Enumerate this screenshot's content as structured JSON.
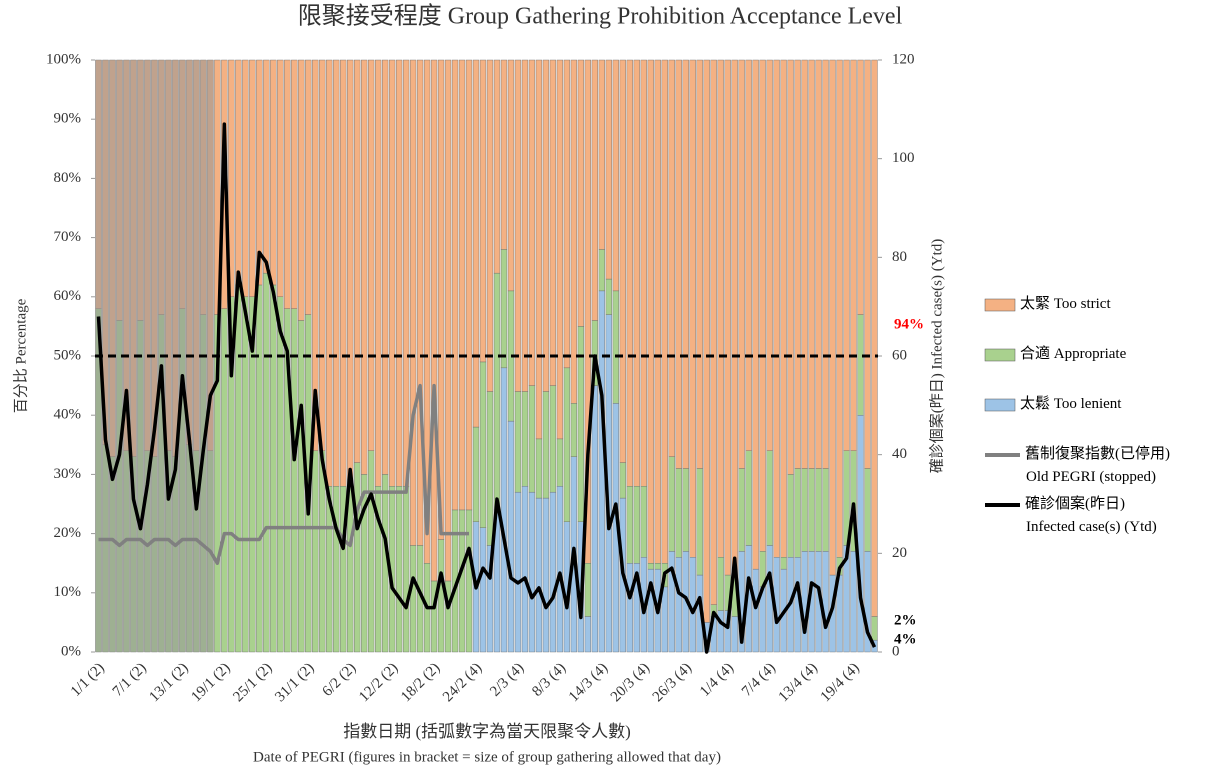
{
  "chart_data": {
    "type": "stacked-bar-line",
    "title": "限聚接受程度 Group Gathering Prohibition Acceptance Level",
    "y_label": "百分比 Percentage",
    "y2_label": "確診個案(昨日) Infected case(s) (Ytd)",
    "x_label": "指數日期 (括弧數字為當天限聚令人數)",
    "x_label_2": "Date of PEGRI (figures in bracket = size of group gathering allowed that day)",
    "categories": [
      "1/1 (2)",
      null,
      null,
      null,
      null,
      null,
      "7/1 (2)",
      null,
      null,
      null,
      null,
      null,
      "13/1 (2)",
      null,
      null,
      null,
      null,
      null,
      "19/1 (2)",
      null,
      null,
      null,
      null,
      null,
      "25/1 (2)",
      null,
      null,
      null,
      null,
      null,
      "31/1 (2)",
      null,
      null,
      null,
      null,
      null,
      "6/2 (2)",
      null,
      null,
      null,
      null,
      null,
      "12/2 (2)",
      null,
      null,
      null,
      null,
      null,
      "18/2 (2)",
      null,
      null,
      null,
      null,
      null,
      "24/2 (4)",
      null,
      null,
      null,
      null,
      null,
      "2/3 (4)",
      null,
      null,
      null,
      null,
      null,
      "8/3 (4)",
      null,
      null,
      null,
      null,
      null,
      "14/3 (4)",
      null,
      null,
      null,
      null,
      null,
      "20/3 (4)",
      null,
      null,
      null,
      null,
      null,
      "26/3 (4)",
      null,
      null,
      null,
      null,
      null,
      "1/4 (4)",
      null,
      null,
      null,
      null,
      null,
      "7/4 (4)",
      null,
      null,
      null,
      null,
      null,
      "13/4 (4)",
      null,
      null,
      null,
      null,
      null,
      "19/4 (4)",
      null,
      null,
      null
    ],
    "ylim": [
      0,
      100
    ],
    "yticks": [
      {
        "value": 0,
        "label": "0%"
      },
      {
        "value": 10,
        "label": "10%"
      },
      {
        "value": 20,
        "label": "20%"
      },
      {
        "value": 30,
        "label": "30%"
      },
      {
        "value": 40,
        "label": "40%"
      },
      {
        "value": 50,
        "label": "50%"
      },
      {
        "value": 60,
        "label": "60%"
      },
      {
        "value": 70,
        "label": "70%"
      },
      {
        "value": 80,
        "label": "80%"
      },
      {
        "value": 90,
        "label": "90%"
      },
      {
        "value": 100,
        "label": "100%"
      }
    ],
    "y2lim": [
      0,
      120
    ],
    "y2ticks": [
      0,
      20,
      40,
      60,
      80,
      100,
      120
    ],
    "hline": 50,
    "series": [
      {
        "name": "太緊 Too strict",
        "kind": "bar",
        "color": "#f4b183",
        "value_label_color": "#ff0000",
        "values": [
          42,
          65,
          67,
          44,
          66,
          67,
          44,
          66,
          67,
          43,
          66,
          67,
          42,
          65,
          66,
          43,
          66,
          43,
          42,
          40,
          38,
          40,
          40,
          38,
          36,
          38,
          40,
          42,
          42,
          44,
          43,
          66,
          66,
          72,
          72,
          72,
          72,
          68,
          70,
          66,
          72,
          70,
          72,
          72,
          72,
          82,
          82,
          85,
          88,
          81,
          88,
          76,
          76,
          76,
          62,
          51,
          56,
          36,
          32,
          39,
          56,
          56,
          55,
          64,
          56,
          55,
          64,
          52,
          58,
          45,
          85,
          44,
          32,
          37,
          39,
          68,
          72,
          72,
          72,
          85,
          85,
          85,
          67,
          69,
          69,
          84,
          69,
          95,
          92,
          84,
          87,
          87,
          69,
          66,
          86,
          83,
          66,
          84,
          84,
          70,
          69,
          69,
          69,
          69,
          69,
          87,
          84,
          66,
          66,
          43,
          69,
          94
        ],
        "value_labels": [
          null,
          null,
          null,
          null,
          null,
          null,
          null,
          null,
          null,
          null,
          null,
          null,
          null,
          null,
          null,
          null,
          null,
          null,
          null,
          null,
          null,
          null,
          null,
          null,
          null,
          null,
          null,
          null,
          null,
          null,
          null,
          null,
          null,
          null,
          null,
          null,
          null,
          null,
          null,
          null,
          null,
          null,
          null,
          null,
          null,
          null,
          null,
          null,
          null,
          null,
          null,
          null,
          null,
          null,
          null,
          null,
          null,
          null,
          null,
          null,
          null,
          null,
          null,
          null,
          null,
          null,
          null,
          null,
          null,
          null,
          null,
          null,
          null,
          null,
          null,
          null,
          null,
          null,
          null,
          null,
          null,
          null,
          null,
          null,
          null,
          null,
          null,
          null,
          null,
          null,
          null,
          null,
          null,
          null,
          null,
          null,
          null,
          null,
          null,
          null,
          null,
          null,
          null,
          null,
          null,
          null,
          null,
          null,
          null,
          null,
          null,
          "94%"
        ]
      },
      {
        "name": "合適 Appropriate",
        "kind": "bar",
        "color": "#a9d18e",
        "value_label_color": "#000000",
        "values": [
          58,
          35,
          33,
          56,
          34,
          33,
          56,
          34,
          33,
          57,
          34,
          33,
          58,
          35,
          34,
          57,
          34,
          57,
          58,
          60,
          62,
          60,
          60,
          62,
          64,
          62,
          60,
          58,
          58,
          56,
          57,
          34,
          34,
          28,
          28,
          28,
          28,
          32,
          30,
          34,
          28,
          30,
          28,
          28,
          28,
          18,
          18,
          15,
          12,
          19,
          12,
          24,
          24,
          24,
          16,
          28,
          26,
          40,
          20,
          22,
          17,
          16,
          18,
          10,
          18,
          18,
          8,
          26,
          9,
          33,
          9,
          11,
          7,
          6,
          19,
          6,
          13,
          13,
          12,
          1,
          1,
          4,
          16,
          15,
          14,
          0,
          18,
          0,
          2,
          9,
          6,
          7,
          14,
          16,
          0,
          6,
          16,
          0,
          2,
          14,
          15,
          14,
          14,
          14,
          14,
          0,
          3,
          16,
          17,
          17,
          14,
          4
        ],
        "value_labels": [
          null,
          null,
          null,
          null,
          null,
          null,
          null,
          null,
          null,
          null,
          null,
          null,
          null,
          null,
          null,
          null,
          null,
          null,
          null,
          null,
          null,
          null,
          null,
          null,
          null,
          null,
          null,
          null,
          null,
          null,
          null,
          null,
          null,
          null,
          null,
          null,
          null,
          null,
          null,
          null,
          null,
          null,
          null,
          null,
          null,
          null,
          null,
          null,
          null,
          null,
          null,
          null,
          null,
          null,
          null,
          null,
          null,
          null,
          null,
          null,
          null,
          null,
          null,
          null,
          null,
          null,
          null,
          null,
          null,
          null,
          null,
          null,
          null,
          null,
          null,
          null,
          null,
          null,
          null,
          null,
          null,
          null,
          null,
          null,
          null,
          null,
          null,
          null,
          null,
          null,
          null,
          null,
          null,
          null,
          null,
          null,
          null,
          null,
          null,
          null,
          null,
          null,
          null,
          null,
          null,
          null,
          null,
          null,
          null,
          null,
          null,
          "4%"
        ]
      },
      {
        "name": "太鬆 Too lenient",
        "kind": "bar",
        "color": "#9dc3e6",
        "value_label_color": "#000000",
        "values": [
          0,
          0,
          0,
          0,
          0,
          0,
          0,
          0,
          0,
          0,
          0,
          0,
          0,
          0,
          0,
          0,
          0,
          0,
          0,
          0,
          0,
          0,
          0,
          0,
          0,
          0,
          0,
          0,
          0,
          0,
          0,
          0,
          0,
          0,
          0,
          0,
          0,
          0,
          0,
          0,
          0,
          0,
          0,
          0,
          0,
          0,
          0,
          0,
          0,
          0,
          0,
          0,
          0,
          0,
          22,
          21,
          18,
          24,
          48,
          39,
          27,
          28,
          27,
          26,
          26,
          27,
          28,
          22,
          33,
          22,
          6,
          45,
          61,
          57,
          42,
          26,
          15,
          15,
          16,
          14,
          14,
          11,
          17,
          16,
          17,
          16,
          13,
          5,
          6,
          7,
          7,
          6,
          17,
          18,
          14,
          11,
          18,
          16,
          14,
          16,
          16,
          17,
          17,
          17,
          17,
          13,
          13,
          18,
          17,
          40,
          17,
          2
        ],
        "value_labels": [
          null,
          null,
          null,
          null,
          null,
          null,
          null,
          null,
          null,
          null,
          null,
          null,
          null,
          null,
          null,
          null,
          null,
          null,
          null,
          null,
          null,
          null,
          null,
          null,
          null,
          null,
          null,
          null,
          null,
          null,
          null,
          null,
          null,
          null,
          null,
          null,
          null,
          null,
          null,
          null,
          null,
          null,
          null,
          null,
          null,
          null,
          null,
          null,
          null,
          null,
          null,
          null,
          null,
          null,
          null,
          null,
          null,
          null,
          null,
          null,
          null,
          null,
          null,
          null,
          null,
          null,
          null,
          null,
          null,
          null,
          null,
          null,
          null,
          null,
          null,
          null,
          null,
          null,
          null,
          null,
          null,
          null,
          null,
          null,
          null,
          null,
          null,
          null,
          null,
          null,
          null,
          null,
          null,
          null,
          null,
          null,
          null,
          null,
          null,
          null,
          null,
          null,
          null,
          null,
          null,
          null,
          null,
          null,
          null,
          null,
          null,
          "2%"
        ]
      },
      {
        "name": "舊制復聚指數(已停用)\nOld PEGRI (stopped)",
        "kind": "line",
        "color": "#808080",
        "values": [
          19,
          19,
          19,
          18,
          19,
          19,
          19,
          18,
          19,
          19,
          19,
          18,
          19,
          19,
          19,
          18,
          17,
          15,
          20,
          20,
          19,
          19,
          19,
          19,
          21,
          21,
          21,
          21,
          21,
          21,
          21,
          21,
          21,
          21,
          21,
          19,
          18,
          24,
          27,
          27,
          27,
          27,
          27,
          27,
          27,
          40,
          45,
          20,
          45,
          20,
          20,
          20,
          20,
          20,
          null,
          null,
          null,
          null,
          null,
          null,
          null,
          null,
          null,
          null,
          null,
          null,
          null,
          null,
          null,
          null,
          null,
          null,
          null,
          null,
          null,
          null,
          null,
          null,
          null,
          null,
          null,
          null,
          null,
          null,
          null,
          null,
          null,
          null,
          null,
          null,
          null,
          null,
          null,
          null,
          null,
          null,
          null,
          null,
          null,
          null,
          null,
          null,
          null,
          null,
          null,
          null,
          null,
          null,
          null,
          null,
          null,
          null
        ]
      },
      {
        "name": "確診個案(昨日)\nInfected case(s) (Ytd)",
        "kind": "line",
        "axis": "y2",
        "color": "#000000",
        "values": [
          68,
          43,
          35,
          40,
          53,
          31,
          25,
          34,
          45,
          58,
          31,
          37,
          56,
          43,
          29,
          41,
          52,
          55,
          107,
          56,
          77,
          69,
          61,
          81,
          79,
          73,
          65,
          61,
          39,
          50,
          28,
          53,
          39,
          31,
          25,
          21,
          37,
          25,
          29,
          32,
          27,
          23,
          13,
          11,
          9,
          15,
          12,
          9,
          9,
          16,
          9,
          13,
          17,
          21,
          13,
          17,
          15,
          31,
          23,
          15,
          14,
          15,
          11,
          13,
          9,
          11,
          16,
          9,
          21,
          7,
          40,
          60,
          52,
          25,
          30,
          16,
          11,
          16,
          8,
          14,
          8,
          16,
          17,
          12,
          11,
          8,
          11,
          0,
          8,
          6,
          5,
          19,
          2,
          15,
          9,
          13,
          16,
          6,
          8,
          10,
          14,
          4,
          14,
          13,
          5,
          9,
          17,
          19,
          30,
          11,
          4,
          1
        ]
      }
    ]
  }
}
